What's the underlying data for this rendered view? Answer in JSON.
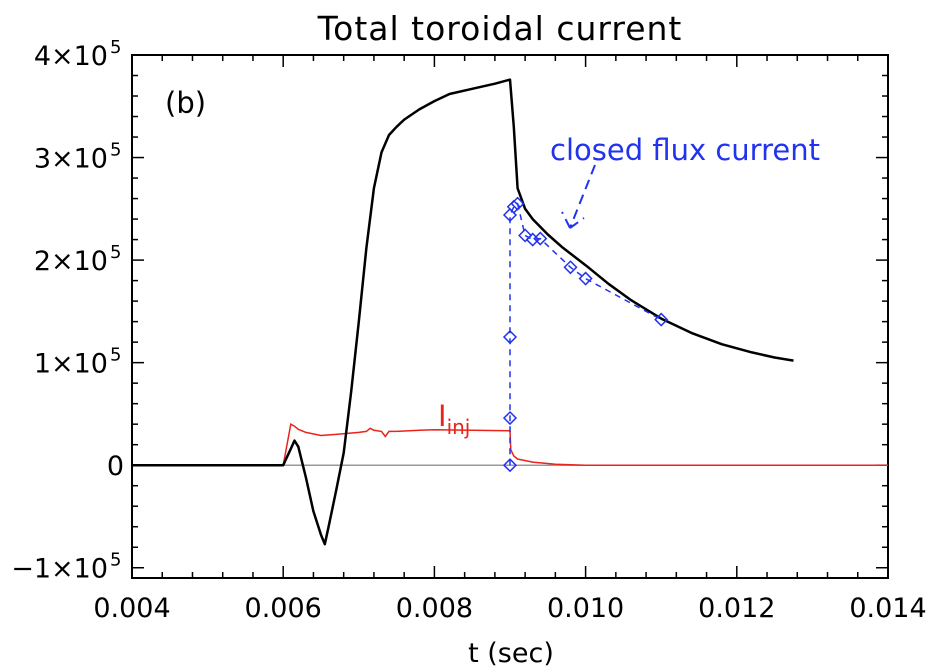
{
  "chart_data": {
    "type": "line",
    "title": "Total toroidal current",
    "xlabel": "t (sec)",
    "ylabel": "",
    "panel_label": "(b)",
    "xlim": [
      0.004,
      0.014
    ],
    "ylim": [
      -110000,
      400000
    ],
    "x_ticks": [
      0.004,
      0.006,
      0.008,
      0.01,
      0.012,
      0.014
    ],
    "x_tick_labels": [
      "0.004",
      "0.006",
      "0.008",
      "0.010",
      "0.012",
      "0.014"
    ],
    "y_ticks": [
      -100000,
      0,
      100000,
      200000,
      300000,
      400000
    ],
    "y_tick_labels": [
      {
        "base": "−1×10",
        "exp": "5"
      },
      {
        "base": "0",
        "exp": ""
      },
      {
        "base": "1×10",
        "exp": "5"
      },
      {
        "base": "2×10",
        "exp": "5"
      },
      {
        "base": "3×10",
        "exp": "5"
      },
      {
        "base": "4×10",
        "exp": "5"
      }
    ],
    "grid": false,
    "zero_line": true,
    "colors": {
      "total": "#000000",
      "injected": "#e8241c",
      "closed_flux": "#2233ee",
      "zero_line": "#999999"
    },
    "annotations": {
      "closed_flux_label": "closed flux current",
      "inj_label_main": "I",
      "inj_label_sub": "inj"
    },
    "series": [
      {
        "key": "total",
        "x": [
          0.004,
          0.006,
          0.0061,
          0.00615,
          0.0062,
          0.0063,
          0.0064,
          0.0065,
          0.00655,
          0.0066,
          0.0067,
          0.0068,
          0.0069,
          0.007,
          0.0071,
          0.0072,
          0.0073,
          0.0074,
          0.0075,
          0.0076,
          0.0078,
          0.008,
          0.0082,
          0.0085,
          0.0088,
          0.009,
          0.00905,
          0.0091,
          0.0092,
          0.0093,
          0.0095,
          0.0097,
          0.01,
          0.0103,
          0.0106,
          0.011,
          0.0114,
          0.0118,
          0.0122,
          0.0125,
          0.01275
        ],
        "y": [
          0,
          0,
          16000,
          24000,
          18000,
          -12000,
          -45000,
          -68000,
          -77000,
          -60000,
          -25000,
          12000,
          72000,
          140000,
          212000,
          270000,
          305000,
          322000,
          330000,
          337000,
          347000,
          355000,
          362000,
          367000,
          372000,
          376000,
          330000,
          270000,
          250000,
          240000,
          225000,
          212000,
          195000,
          177000,
          161000,
          143000,
          129000,
          118000,
          110000,
          105000,
          102000
        ]
      },
      {
        "key": "injected",
        "x": [
          0.004,
          0.006,
          0.00605,
          0.0061,
          0.00615,
          0.0062,
          0.0063,
          0.0065,
          0.0067,
          0.007,
          0.0071,
          0.00715,
          0.0072,
          0.0073,
          0.00735,
          0.0074,
          0.0075,
          0.0078,
          0.008,
          0.0085,
          0.009,
          0.00901,
          0.00905,
          0.0091,
          0.0093,
          0.0096,
          0.0098,
          0.01,
          0.014
        ],
        "y": [
          0,
          0,
          20000,
          40000,
          38000,
          35000,
          32000,
          29000,
          30000,
          32000,
          33000,
          36000,
          34000,
          33000,
          28000,
          33000,
          33000,
          34000,
          34500,
          34000,
          33500,
          15000,
          9000,
          6000,
          3000,
          1000,
          400,
          0,
          0
        ]
      },
      {
        "key": "closed_flux",
        "x": [
          0.009,
          0.009,
          0.009,
          0.009,
          0.00905,
          0.0091,
          0.0092,
          0.0093,
          0.0094,
          0.0098,
          0.01,
          0.011
        ],
        "y": [
          0,
          46000,
          125000,
          244000,
          252000,
          255000,
          224000,
          220000,
          221000,
          193000,
          182000,
          142000
        ]
      }
    ]
  }
}
